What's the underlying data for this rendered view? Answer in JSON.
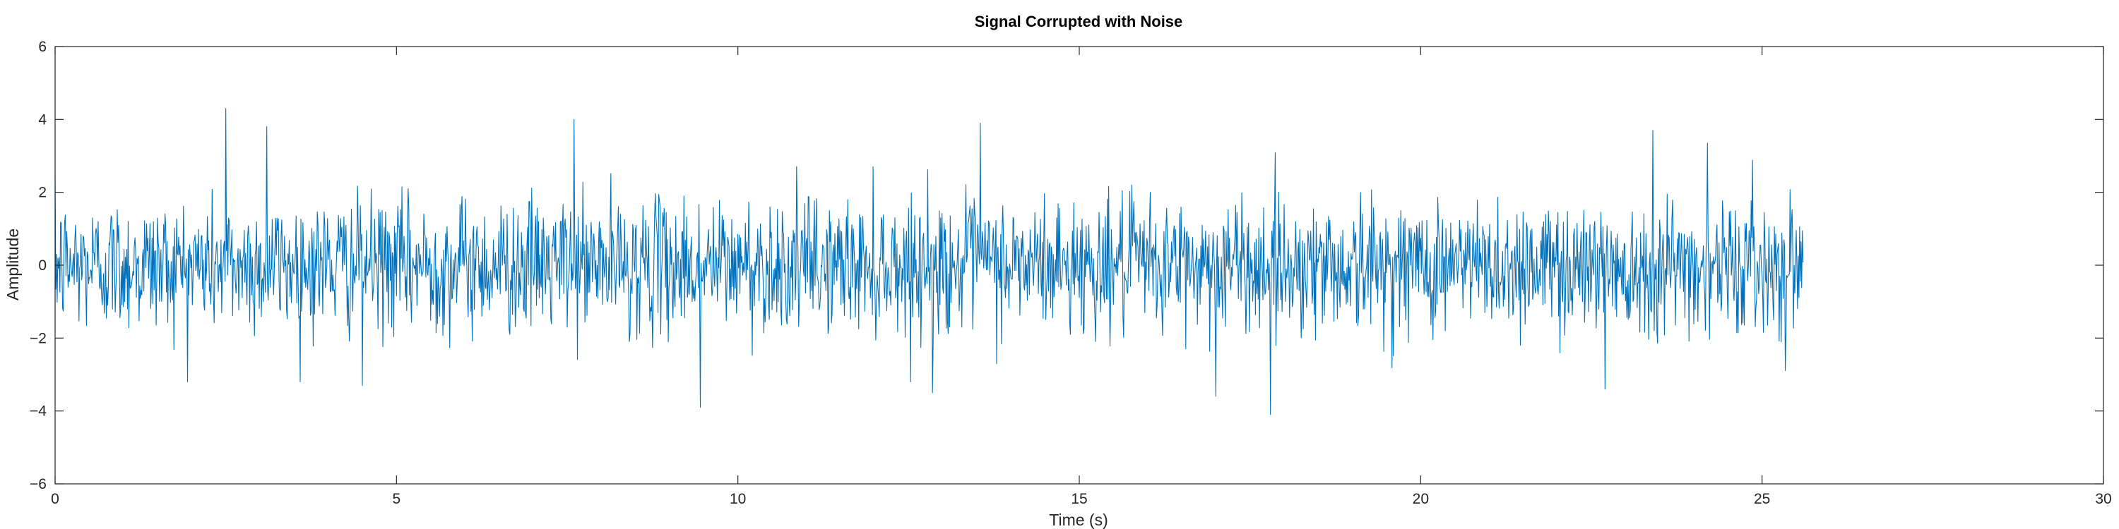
{
  "chart_data": {
    "type": "line",
    "title": "Signal Corrupted with Noise",
    "xlabel": "Time (s)",
    "ylabel": "Amplitude",
    "xlim": [
      0,
      30
    ],
    "ylim": [
      -6,
      6
    ],
    "x_ticks": [
      0,
      5,
      10,
      15,
      20,
      25,
      30
    ],
    "y_ticks": [
      -6,
      -4,
      -2,
      0,
      2,
      4,
      6
    ],
    "x_tick_labels": [
      "0",
      "5",
      "10",
      "15",
      "20",
      "25",
      "30"
    ],
    "y_tick_labels": [
      "−6",
      "−4",
      "−2",
      "0",
      "2",
      "4",
      "6"
    ],
    "grid": false,
    "series": [
      {
        "color": "#0072BD",
        "x_start": 0,
        "x_end": 25.6,
        "sample_rate_hz": 100,
        "noise_std": 0.9,
        "peaks": [
          {
            "x": 2.5,
            "y": 4.3
          },
          {
            "x": 3.1,
            "y": 3.8
          },
          {
            "x": 7.6,
            "y": 4.0
          },
          {
            "x": 13.55,
            "y": 3.9
          },
          {
            "x": 23.4,
            "y": 3.7
          },
          {
            "x": 24.2,
            "y": 3.35
          },
          {
            "x": 9.45,
            "y": -3.9
          },
          {
            "x": 17.8,
            "y": -4.1
          },
          {
            "x": 17.0,
            "y": -3.6
          },
          {
            "x": 4.5,
            "y": -3.3
          },
          {
            "x": 12.85,
            "y": -3.5
          },
          {
            "x": 22.7,
            "y": -3.4
          }
        ]
      }
    ]
  }
}
